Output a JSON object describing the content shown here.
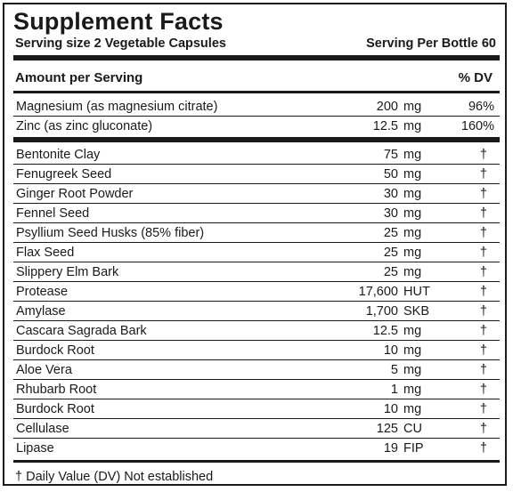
{
  "title": "Supplement Facts",
  "serving_size": "Serving size 2 Vegetable Capsules",
  "servings_per": "Serving Per Bottle 60",
  "header": {
    "amount": "Amount per Serving",
    "dv": "% DV"
  },
  "vitamins": [
    {
      "name": "Magnesium (as magnesium citrate)",
      "amount": "200",
      "unit": "mg",
      "dv": "96%"
    },
    {
      "name": "Zinc (as zinc gluconate)",
      "amount": "12.5",
      "unit": "mg",
      "dv": "160%"
    }
  ],
  "ingredients": [
    {
      "name": "Bentonite Clay",
      "amount": "75",
      "unit": "mg",
      "dv": "†"
    },
    {
      "name": "Fenugreek Seed",
      "amount": "50",
      "unit": "mg",
      "dv": "†"
    },
    {
      "name": "Ginger Root Powder",
      "amount": "30",
      "unit": "mg",
      "dv": "†"
    },
    {
      "name": "Fennel Seed",
      "amount": "30",
      "unit": "mg",
      "dv": "†"
    },
    {
      "name": "Psyllium Seed Husks (85% fiber)",
      "amount": "25",
      "unit": "mg",
      "dv": "†"
    },
    {
      "name": "Flax Seed",
      "amount": "25",
      "unit": "mg",
      "dv": "†"
    },
    {
      "name": "Slippery Elm Bark",
      "amount": "25",
      "unit": "mg",
      "dv": "†"
    },
    {
      "name": "Protease",
      "amount": "17,600",
      "unit": "HUT",
      "dv": "†"
    },
    {
      "name": "Amylase",
      "amount": "1,700",
      "unit": "SKB",
      "dv": "†"
    },
    {
      "name": "Cascara Sagrada Bark",
      "amount": "12.5",
      "unit": "mg",
      "dv": "†"
    },
    {
      "name": "Burdock Root",
      "amount": "10",
      "unit": "mg",
      "dv": "†"
    },
    {
      "name": "Aloe Vera",
      "amount": "5",
      "unit": "mg",
      "dv": "†"
    },
    {
      "name": "Rhubarb Root",
      "amount": "1",
      "unit": "mg",
      "dv": "†"
    },
    {
      "name": "Burdock Root",
      "amount": "10",
      "unit": "mg",
      "dv": "†"
    },
    {
      "name": "Cellulase",
      "amount": "125",
      "unit": "CU",
      "dv": "†"
    },
    {
      "name": "Lipase",
      "amount": "19",
      "unit": "FIP",
      "dv": "†"
    }
  ],
  "footnote": "† Daily Value (DV) Not established"
}
